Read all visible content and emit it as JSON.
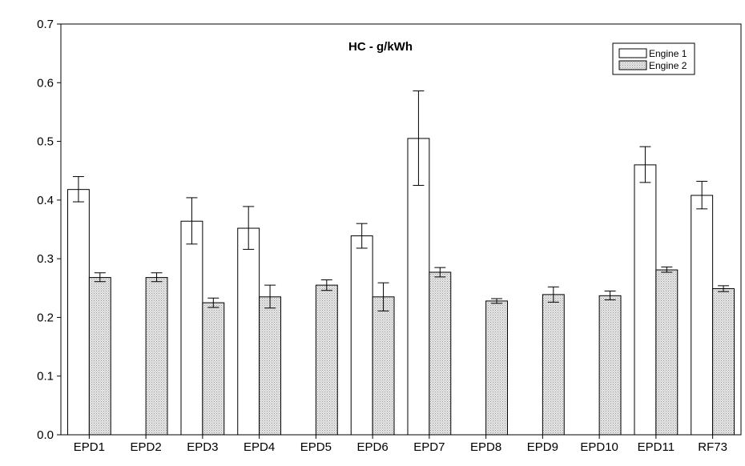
{
  "chart_data": {
    "type": "bar",
    "title": "HC - g/kWh",
    "xlabel": "",
    "ylabel": "",
    "ylim": [
      0.0,
      0.7
    ],
    "yticks": [
      "0.0",
      "0.1",
      "0.2",
      "0.3",
      "0.4",
      "0.5",
      "0.6",
      "0.7"
    ],
    "categories": [
      "EPD1",
      "EPD2",
      "EPD3",
      "EPD4",
      "EPD5",
      "EPD6",
      "EPD7",
      "EPD8",
      "EPD9",
      "EPD10",
      "EPD11",
      "RF73"
    ],
    "series": [
      {
        "name": "Engine 1",
        "fill": "white",
        "values": [
          0.418,
          null,
          0.364,
          0.352,
          null,
          0.339,
          0.505,
          null,
          null,
          null,
          0.46,
          0.408
        ],
        "err_low": [
          0.397,
          null,
          0.325,
          0.316,
          null,
          0.318,
          0.425,
          null,
          null,
          null,
          0.43,
          0.385
        ],
        "err_high": [
          0.44,
          null,
          0.404,
          0.389,
          null,
          0.36,
          0.586,
          null,
          null,
          null,
          0.491,
          0.432
        ]
      },
      {
        "name": "Engine 2",
        "fill": "dotted-gray",
        "values": [
          0.268,
          0.268,
          0.225,
          0.235,
          0.255,
          0.235,
          0.277,
          0.228,
          0.239,
          0.237,
          0.281,
          0.249
        ],
        "err_low": [
          0.261,
          0.261,
          0.217,
          0.216,
          0.246,
          0.211,
          0.269,
          0.224,
          0.226,
          0.23,
          0.277,
          0.244
        ],
        "err_high": [
          0.276,
          0.276,
          0.233,
          0.255,
          0.264,
          0.259,
          0.285,
          0.232,
          0.252,
          0.245,
          0.286,
          0.254
        ]
      }
    ],
    "legend": {
      "position": "top-right",
      "entries": [
        "Engine 1",
        "Engine 2"
      ]
    },
    "grid": false,
    "colors": {
      "axis": "#000000",
      "bar_outline": "#000000",
      "engine2_fill": "#d4d4d4"
    }
  }
}
